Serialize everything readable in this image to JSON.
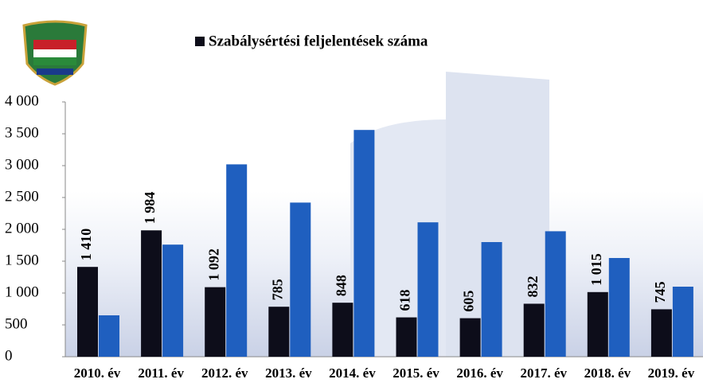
{
  "chart_data": {
    "type": "bar",
    "categories": [
      "2010. év",
      "2011. év",
      "2012. év",
      "2013. év",
      "2014. év",
      "2015. év",
      "2016. év",
      "2017. év",
      "2018. év",
      "2019. év"
    ],
    "series": [
      {
        "name": "Szabálysértési feljelentések száma",
        "color": "#0d0d1a",
        "values": [
          1410,
          1984,
          1092,
          785,
          848,
          618,
          605,
          832,
          1015,
          745
        ],
        "value_labels": [
          "1 410",
          "1 984",
          "1 092",
          "785",
          "848",
          "618",
          "605",
          "832",
          "1 015",
          "745"
        ]
      },
      {
        "color": "#1f5fbf",
        "values": [
          650,
          1760,
          3020,
          2420,
          3560,
          2110,
          1800,
          1970,
          1550,
          1100
        ]
      }
    ],
    "ylim": [
      0,
      4000
    ],
    "yticks": [
      0,
      500,
      {
        "value": 1000,
        "label": "1 000"
      },
      {
        "value": 1500,
        "label": "1 500"
      },
      {
        "value": 2000,
        "label": "2 000"
      },
      {
        "value": 2500,
        "label": "2 500"
      },
      {
        "value": 3000,
        "label": "3 000"
      },
      {
        "value": 3500,
        "label": "3 500"
      },
      {
        "value": 4000,
        "label": "4 000"
      }
    ],
    "legend": "top"
  }
}
